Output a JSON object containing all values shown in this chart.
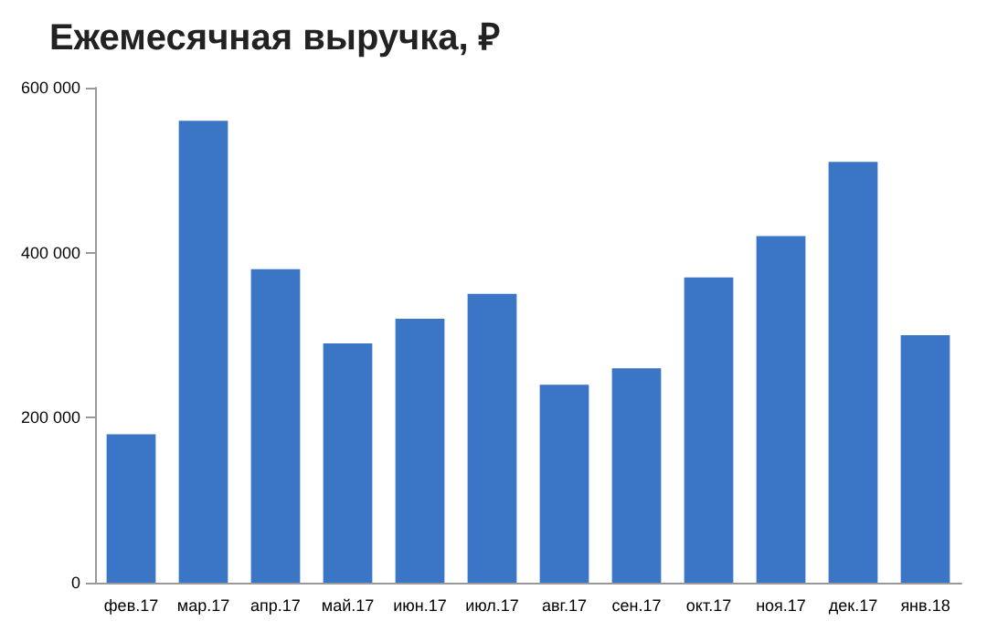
{
  "chart_data": {
    "type": "bar",
    "title": "Ежемесячная выручка, ₽",
    "categories": [
      "фев.17",
      "мар.17",
      "апр.17",
      "май.17",
      "июн.17",
      "июл.17",
      "авг.17",
      "сен.17",
      "окт.17",
      "ноя.17",
      "дек.17",
      "янв.18"
    ],
    "values": [
      180000,
      560000,
      380000,
      290000,
      320000,
      350000,
      240000,
      260000,
      370000,
      420000,
      510000,
      300000
    ],
    "color": "#3b76c6",
    "ylim": [
      0,
      600000
    ],
    "yticks": [
      {
        "value": 0,
        "label": "0"
      },
      {
        "value": 200000,
        "label": "200 000"
      },
      {
        "value": 400000,
        "label": "400 000"
      },
      {
        "value": 600000,
        "label": "600 000"
      }
    ],
    "grid": false
  }
}
